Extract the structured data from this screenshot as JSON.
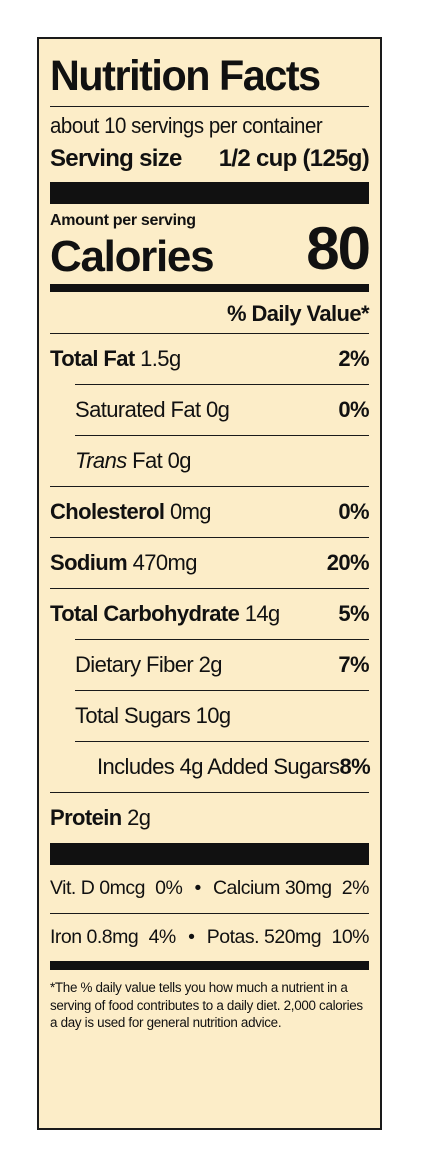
{
  "label": {
    "title": "Nutrition Facts",
    "servings_per_container": "about 10 servings per container",
    "serving_size_label": "Serving size",
    "serving_size_value": "1/2 cup (125g)",
    "amount_per_serving": "Amount per serving",
    "calories_label": "Calories",
    "calories_value": "80",
    "daily_value_header": "% Daily Value*",
    "nutrients": [
      {
        "name": "Total Fat",
        "amount": "1.5g",
        "dv": "2%"
      },
      {
        "name": "Saturated Fat",
        "amount": "0g",
        "dv": "0%"
      },
      {
        "name": "Trans",
        "suffix": "Fat",
        "amount": "0g",
        "dv": ""
      },
      {
        "name": "Cholesterol",
        "amount": "0mg",
        "dv": "0%"
      },
      {
        "name": "Sodium",
        "amount": "470mg",
        "dv": "20%"
      },
      {
        "name": "Total Carbohydrate",
        "amount": "14g",
        "dv": "5%"
      },
      {
        "name": "Dietary Fiber",
        "amount": "2g",
        "dv": "7%"
      },
      {
        "name": "Total Sugars",
        "amount": "10g",
        "dv": ""
      },
      {
        "name": "Includes 4g Added Sugars",
        "amount": "",
        "dv": "8%"
      },
      {
        "name": "Protein",
        "amount": "2g",
        "dv": ""
      }
    ],
    "minerals": [
      {
        "left_name": "Vit. D",
        "left_amount": "0mcg",
        "left_dv": "0%",
        "separator": "•",
        "right_name": "Calcium",
        "right_amount": "30mg",
        "right_dv": "2%"
      },
      {
        "left_name": "Iron",
        "left_amount": "0.8mg",
        "left_dv": "4%",
        "separator": "•",
        "right_name": "Potas.",
        "right_amount": "520mg",
        "right_dv": "10%"
      }
    ],
    "footnote": "*The % daily value tells you how much a nutrient in a serving of food contributes to a daily diet. 2,000 calories a day is used for general nutrition advice."
  },
  "colors": {
    "label_background": "#fcedc8",
    "ink": "#111111"
  }
}
